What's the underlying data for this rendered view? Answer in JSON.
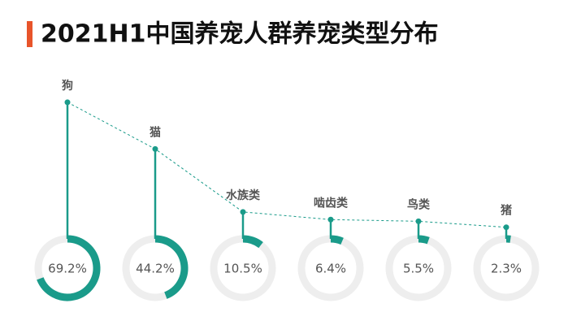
{
  "chart_data": {
    "type": "lollipop-ring",
    "title": "2021H1中国养宠人群养宠类型分布",
    "categories": [
      "狗",
      "猫",
      "水族类",
      "啮齿类",
      "鸟类",
      "猪"
    ],
    "values": [
      69.2,
      44.2,
      10.5,
      6.4,
      5.5,
      2.3
    ],
    "value_labels": [
      "69.2%",
      "44.2%",
      "10.5%",
      "6.4%",
      "5.5%",
      "2.3%"
    ],
    "color": "#1a9b8a",
    "ring_color": "#eeeeee",
    "accent_color": "#e8542a"
  }
}
